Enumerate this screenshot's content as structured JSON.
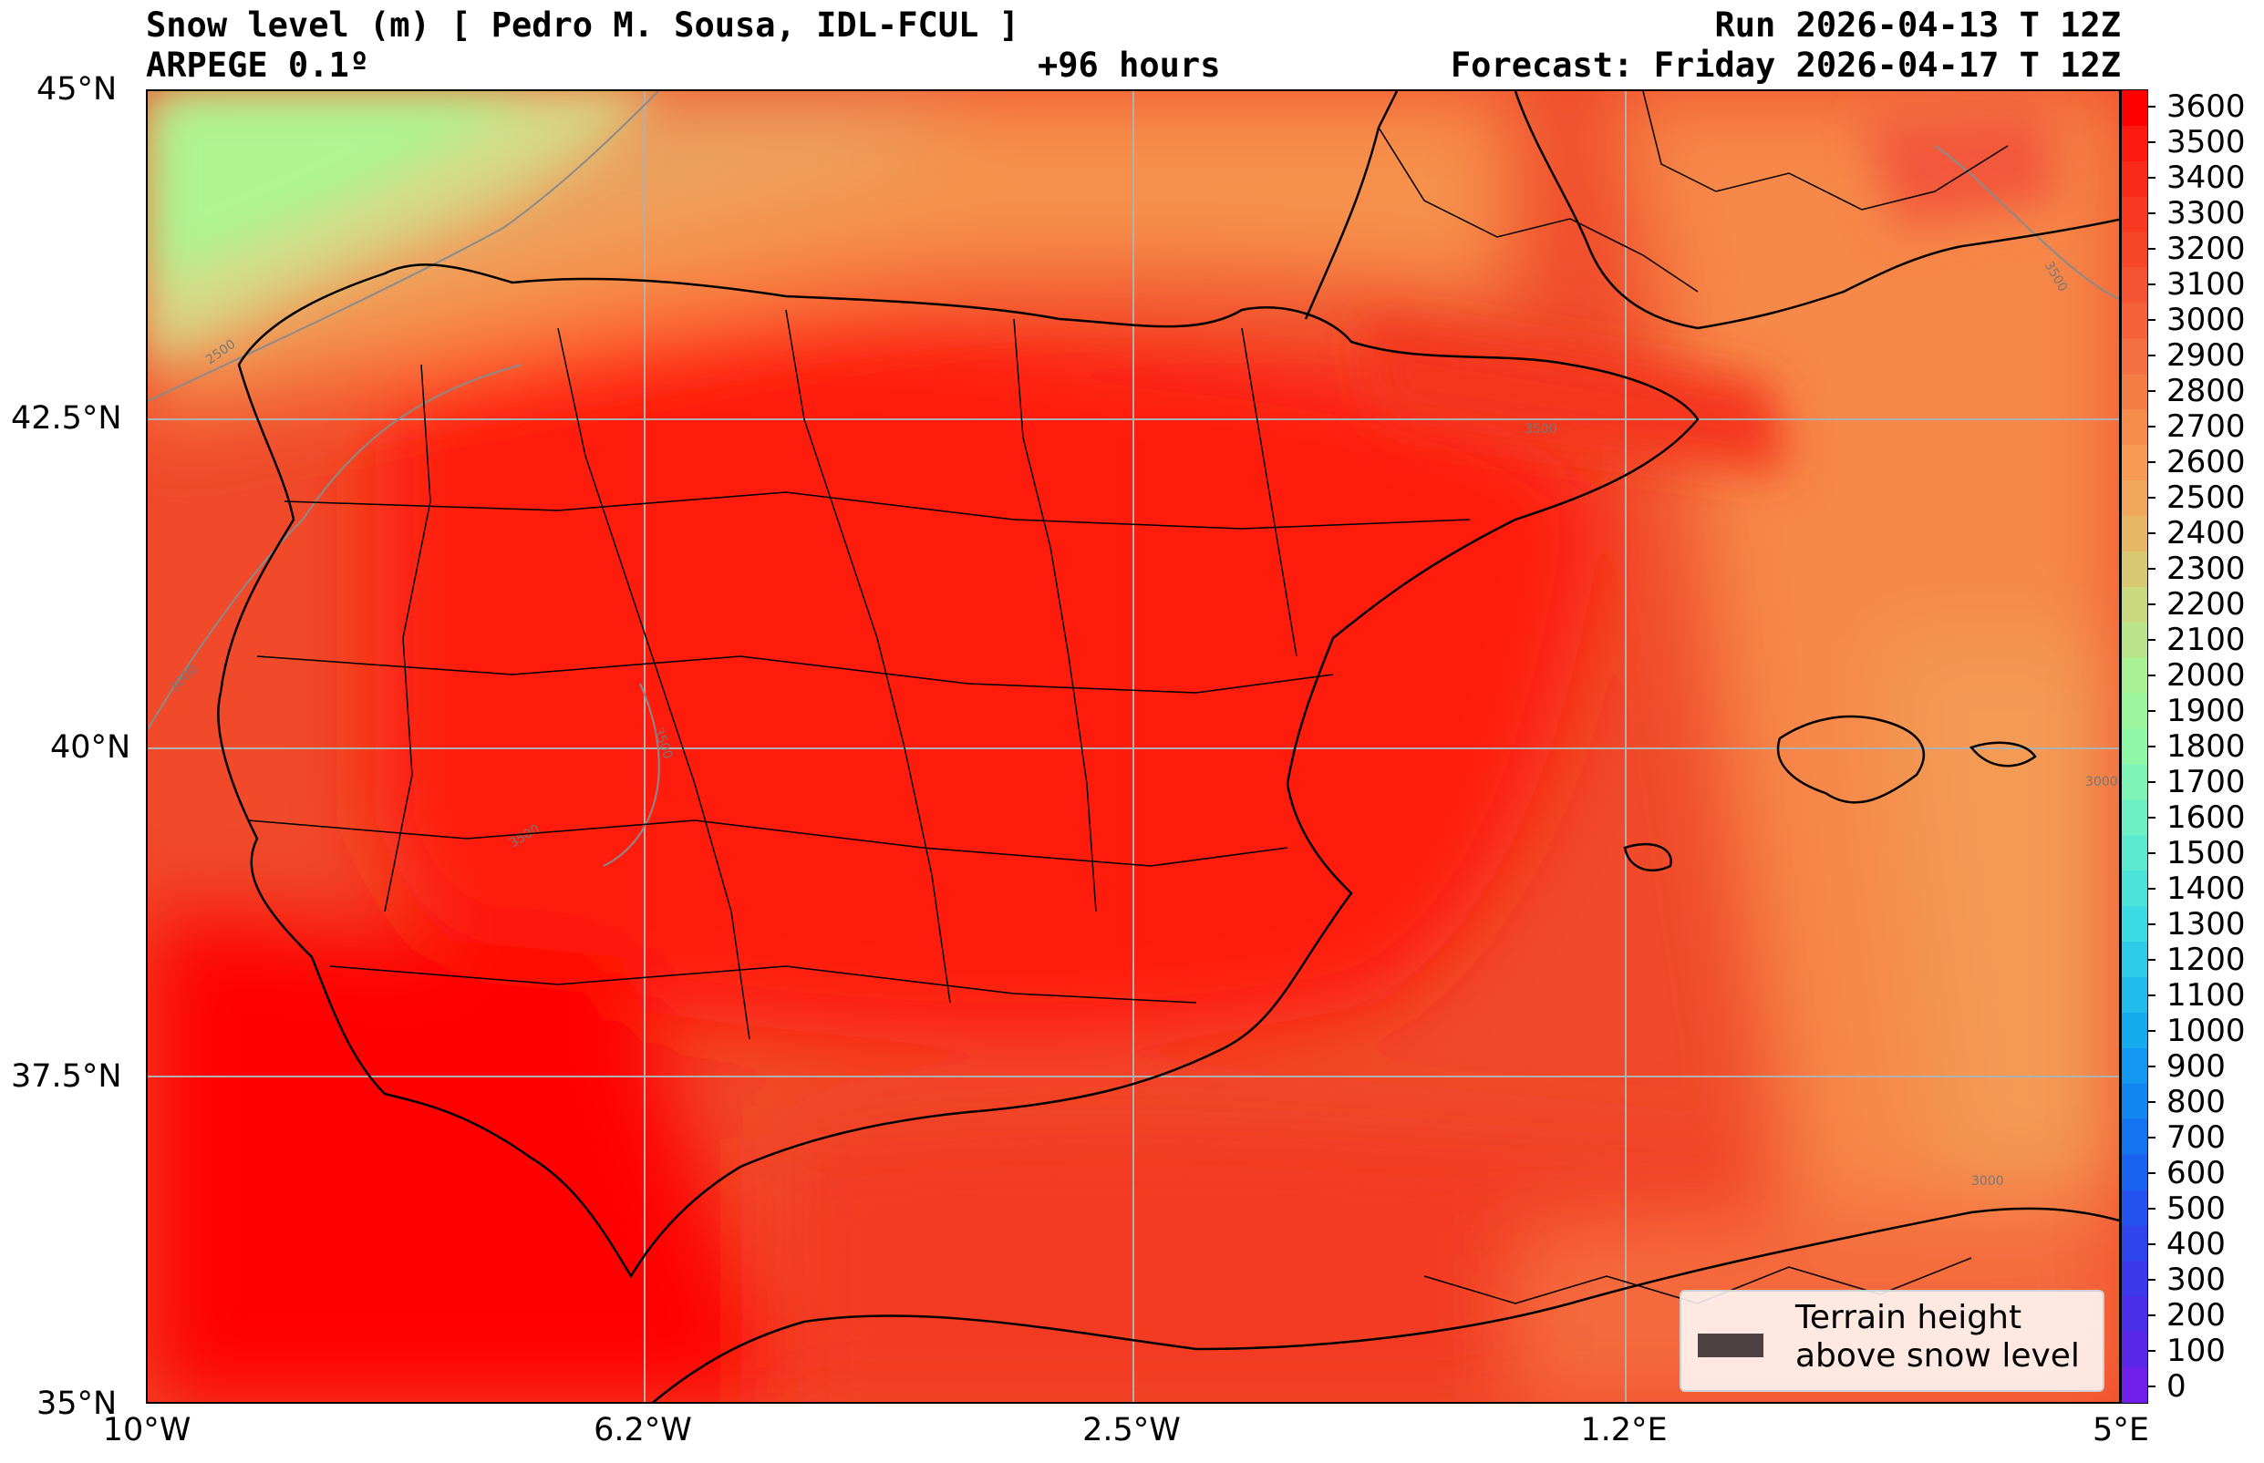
{
  "header": {
    "title": "Snow level (m) [ Pedro M. Sousa, IDL-FCUL ]",
    "model": "ARPEGE 0.1º",
    "lead_time": "+96 hours",
    "run": "Run 2026-04-13 T 12Z",
    "forecast": "Forecast: Friday 2026-04-17 T 12Z"
  },
  "axes": {
    "lat_labels": [
      "45°N",
      "42.5°N",
      "40°N",
      "37.5°N",
      "35°N"
    ],
    "lon_labels": [
      "10°W",
      "6.2°W",
      "2.5°W",
      "1.2°E",
      "5°E"
    ]
  },
  "colorbar": {
    "levels": [
      "3600",
      "3500",
      "3400",
      "3300",
      "3200",
      "3100",
      "3000",
      "2900",
      "2800",
      "2700",
      "2600",
      "2500",
      "2400",
      "2300",
      "2200",
      "2100",
      "2000",
      "1900",
      "1800",
      "1700",
      "1600",
      "1500",
      "1400",
      "1300",
      "1200",
      "1100",
      "1000",
      "900",
      "800",
      "700",
      "600",
      "500",
      "400",
      "300",
      "200",
      "100",
      "0"
    ]
  },
  "contour_labels": [
    "2500",
    "3000",
    "3500",
    "3500",
    "3500",
    "3000",
    "3500",
    "3000"
  ],
  "legend": {
    "line1": "Terrain height",
    "line2": "above snow level"
  },
  "colors": {
    "deep_red": "#ff0000",
    "red": "#f22a1e",
    "orange_red": "#f46a3a",
    "orange": "#f88a4a",
    "light_orange": "#f6a35e",
    "tan": "#e8bb6a",
    "olive": "#d2dc84",
    "light_green": "#aef590",
    "terrain": "#4d4040"
  }
}
